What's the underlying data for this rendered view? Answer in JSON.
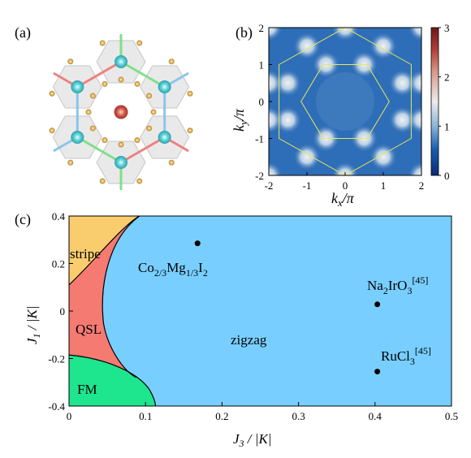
{
  "panels": {
    "a": {
      "label": "(a)"
    },
    "b": {
      "label": "(b)",
      "xlabel": "k",
      "xlabel_sub": "x",
      "xlabel_tail": "/π",
      "ylabel": "k",
      "ylabel_sub": "y",
      "ylabel_tail": "/π",
      "xticks": [
        "-2",
        "-1",
        "0",
        "1",
        "2"
      ],
      "yticks": [
        "2",
        "1",
        "0",
        "-1",
        "-2"
      ],
      "colorbar_ticks": [
        "3",
        "2",
        "1",
        "0"
      ],
      "colors": {
        "low": "#1a4fa0",
        "mid": "#e8e8e8",
        "high": "#7a1b1b",
        "bz": "#e5e85a"
      }
    },
    "c": {
      "label": "(c)",
      "xlabel": "J",
      "xlabel_sub": "3",
      "xlabel_tail": " / |K|",
      "ylabel": "J",
      "ylabel_sub": "1",
      "ylabel_tail": " / |K|",
      "xticks": [
        "0",
        "0.1",
        "0.2",
        "0.3",
        "0.4",
        "0.5"
      ],
      "yticks": [
        "0.4",
        "0.2",
        "0",
        "-0.2",
        "-0.4"
      ],
      "regions": {
        "stripe": "stripe",
        "qsl": "QSL",
        "fm": "FM",
        "zigzag": "zigzag"
      },
      "colors": {
        "stripe": "#f9cc6e",
        "qsl": "#f57a72",
        "fm": "#1ee68f",
        "zigzag": "#78cfff"
      }
    }
  },
  "chart_data": {
    "type": "scatter",
    "xlim": [
      0,
      0.5
    ],
    "ylim": [
      -0.4,
      0.4
    ],
    "points": [
      {
        "name": "Co2/3Mg1/3I2",
        "label_main": "Co",
        "label_parts": [
          "2/3",
          "Mg",
          "1/3",
          "I",
          "2"
        ],
        "x": 0.168,
        "y": 0.285
      },
      {
        "name": "Na2IrO3[45]",
        "label_parts": [
          "Na",
          "2",
          "IrO",
          "3",
          "[45]"
        ],
        "x": 0.403,
        "y": 0.028
      },
      {
        "name": "RuCl3[45]",
        "label_parts": [
          "RuCl",
          "3",
          "[45]"
        ],
        "x": 0.403,
        "y": -0.255
      }
    ]
  }
}
